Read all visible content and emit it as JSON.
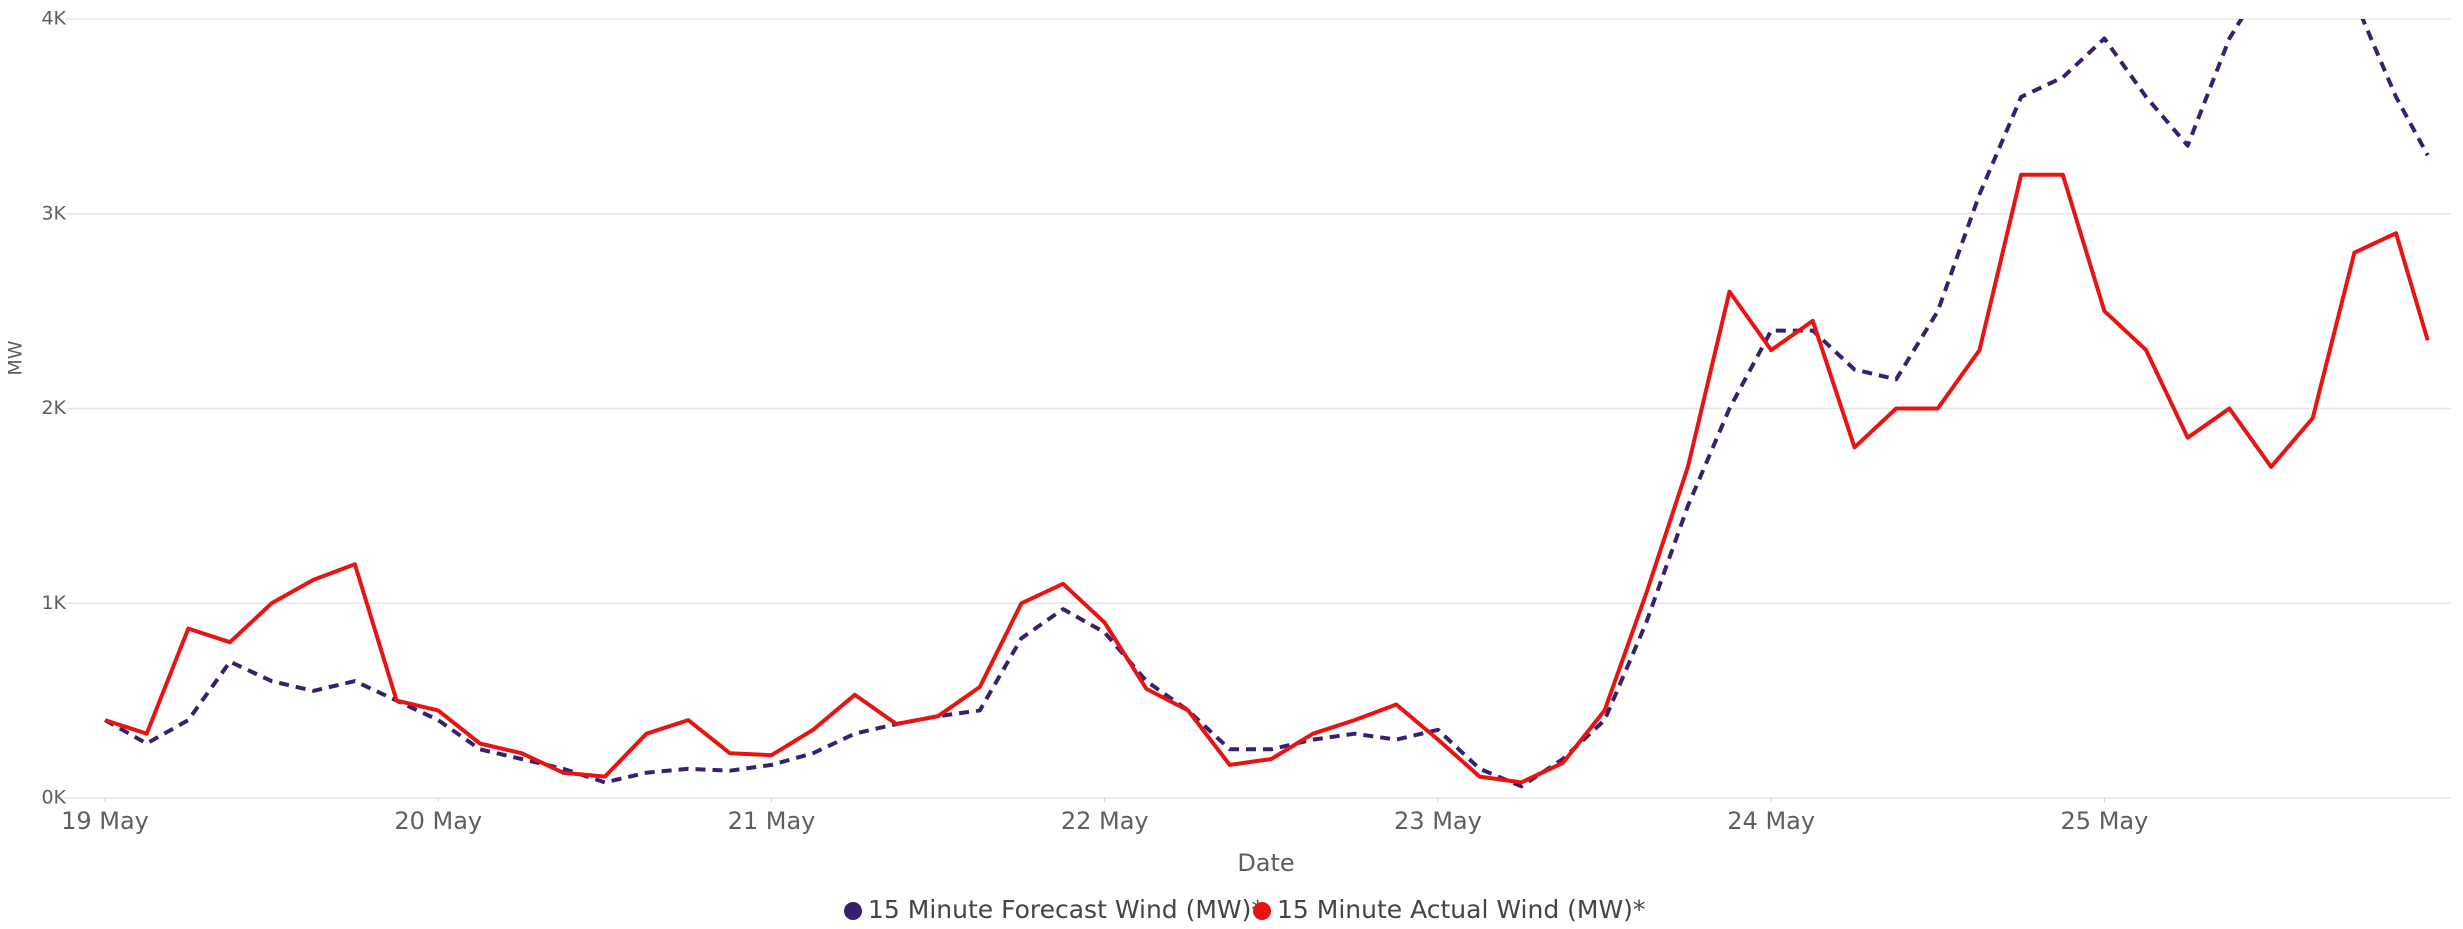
{
  "chart_data": {
    "type": "line",
    "xlabel": "Date",
    "ylabel": "MW",
    "x": [
      0,
      0.125,
      0.25,
      0.375,
      0.5,
      0.625,
      0.75,
      0.875,
      1,
      1.125,
      1.25,
      1.375,
      1.5,
      1.625,
      1.75,
      1.875,
      2,
      2.125,
      2.25,
      2.375,
      2.5,
      2.625,
      2.75,
      2.875,
      3,
      3.125,
      3.25,
      3.375,
      3.5,
      3.625,
      3.75,
      3.875,
      4,
      4.125,
      4.25,
      4.375,
      4.5,
      4.625,
      4.75,
      4.875,
      5,
      5.125,
      5.25,
      5.375,
      5.5,
      5.625,
      5.75,
      5.875,
      6,
      6.125,
      6.25,
      6.375,
      6.5,
      6.625,
      6.75,
      6.875,
      6.97
    ],
    "series": [
      {
        "name": "15 Minute Forecast Wind (MW)*",
        "color": "#3a1f6e",
        "dashed": true,
        "values": [
          400,
          280,
          400,
          700,
          600,
          550,
          600,
          500,
          400,
          250,
          200,
          150,
          80,
          130,
          150,
          140,
          170,
          230,
          330,
          380,
          420,
          450,
          820,
          970,
          850,
          600,
          450,
          250,
          250,
          300,
          330,
          300,
          350,
          150,
          60,
          200,
          400,
          900,
          1500,
          2000,
          2400,
          2400,
          2200,
          2150,
          2500,
          3100,
          3600,
          3700,
          3900,
          3600,
          3350,
          3900,
          4250,
          4200,
          4100,
          3600,
          3300
        ]
      },
      {
        "name": "15 Minute Actual Wind (MW)*",
        "color": "#e81313",
        "dashed": false,
        "values": [
          400,
          330,
          870,
          800,
          1000,
          1120,
          1200,
          500,
          450,
          280,
          230,
          130,
          110,
          330,
          400,
          230,
          220,
          350,
          530,
          380,
          420,
          570,
          1000,
          1100,
          900,
          560,
          450,
          170,
          200,
          330,
          400,
          480,
          300,
          110,
          80,
          180,
          450,
          1050,
          1700,
          2600,
          2300,
          2450,
          1800,
          2000,
          2000,
          2300,
          3200,
          3200,
          2500,
          2300,
          1850,
          2000,
          1700,
          1950,
          2800,
          2900,
          2350
        ]
      }
    ],
    "xlim": [
      0,
      7.04
    ],
    "xticks": [
      {
        "value": 0,
        "label": "19 May"
      },
      {
        "value": 1,
        "label": "20 May"
      },
      {
        "value": 2,
        "label": "21 May"
      },
      {
        "value": 3,
        "label": "22 May"
      },
      {
        "value": 4,
        "label": "23 May"
      },
      {
        "value": 5,
        "label": "24 May"
      },
      {
        "value": 6,
        "label": "25 May"
      }
    ],
    "ylim": [
      0,
      4000
    ],
    "yticks": [
      {
        "value": 0,
        "label": "0K"
      },
      {
        "value": 1000,
        "label": "1K"
      },
      {
        "value": 2000,
        "label": "2K"
      },
      {
        "value": 3000,
        "label": "3K"
      },
      {
        "value": 4000,
        "label": "4K"
      }
    ],
    "grid": true,
    "legend": "bottom"
  }
}
